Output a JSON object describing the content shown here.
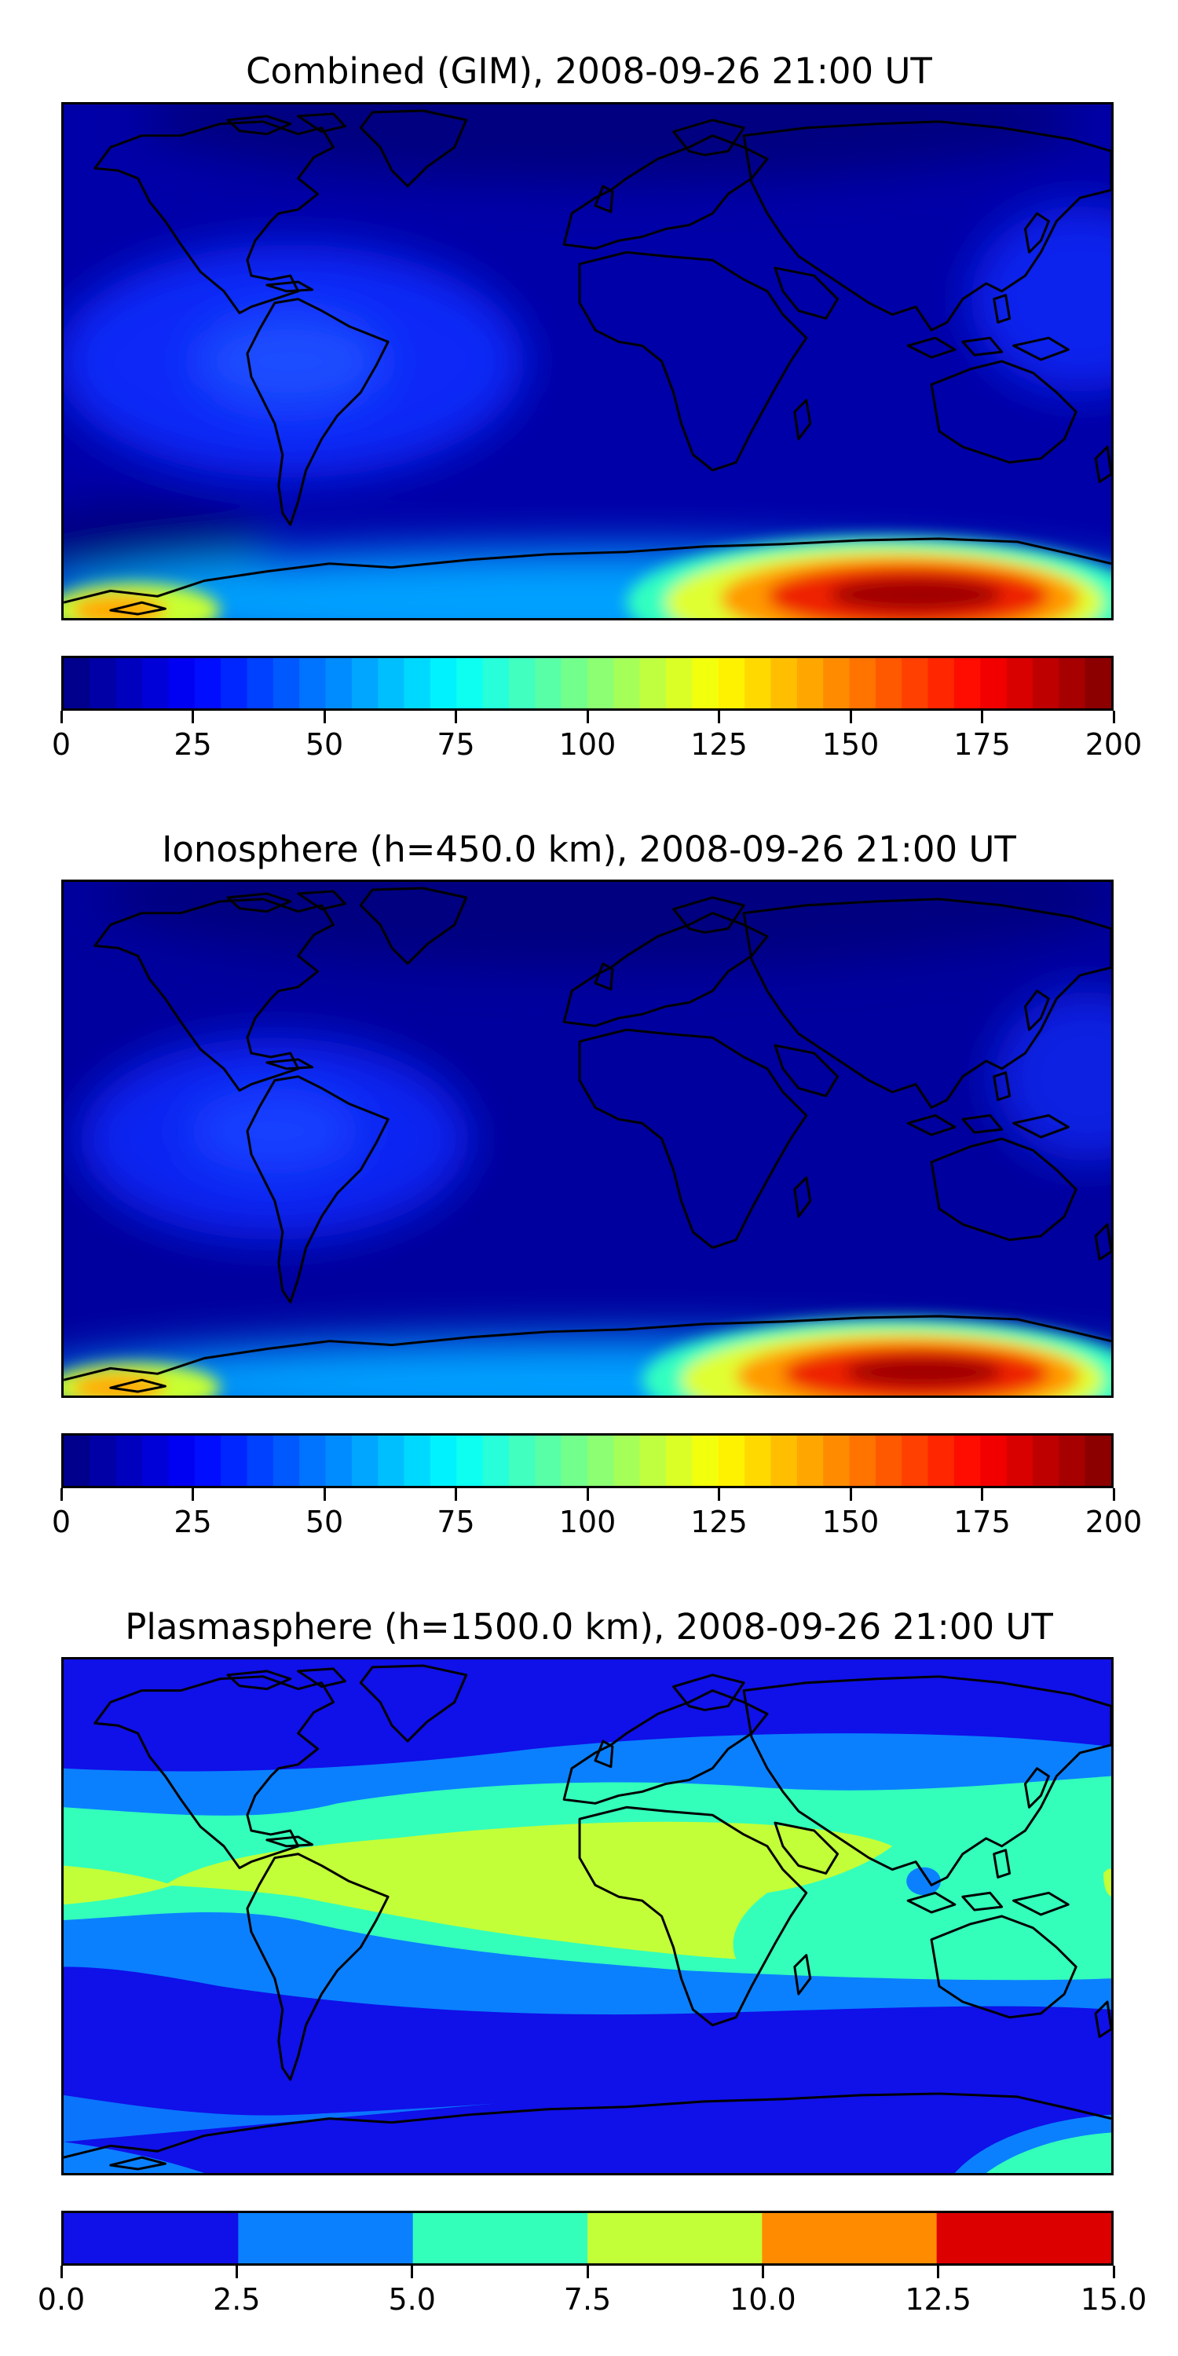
{
  "panels": [
    {
      "title": "Combined (GIM), 2008-09-26 21:00 UT",
      "colorbar": {
        "type": "continuous",
        "min": 0,
        "max": 200,
        "levels": 40,
        "ticks": [
          "0",
          "25",
          "50",
          "75",
          "100",
          "125",
          "150",
          "175",
          "200"
        ]
      }
    },
    {
      "title": "Ionosphere  (h=450.0 km), 2008-09-26 21:00 UT",
      "colorbar": {
        "type": "continuous",
        "min": 0,
        "max": 200,
        "levels": 40,
        "ticks": [
          "0",
          "25",
          "50",
          "75",
          "100",
          "125",
          "150",
          "175",
          "200"
        ]
      }
    },
    {
      "title": "Plasmasphere (h=1500.0 km), 2008-09-26 21:00 UT",
      "colorbar": {
        "type": "discrete",
        "min": 0,
        "max": 15,
        "colors": [
          "#1010e8",
          "#0a80ff",
          "#33ffbb",
          "#c2ff38",
          "#ff8c00",
          "#dd0000"
        ],
        "ticks": [
          "0.0",
          "2.5",
          "5.0",
          "7.5",
          "10.0",
          "12.5",
          "15.0"
        ]
      }
    }
  ],
  "colors": {
    "coastline": "#000000",
    "map_background_dark": "#00008f"
  }
}
